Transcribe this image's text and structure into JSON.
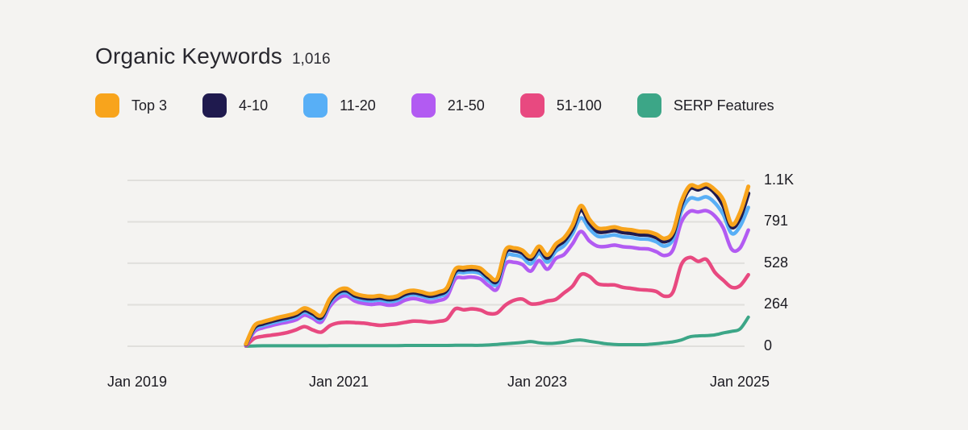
{
  "header": {
    "title": "Organic Keywords",
    "count": "1,016"
  },
  "legend": {
    "items": [
      {
        "label": "Top 3",
        "color": "#F8A41C"
      },
      {
        "label": "4-10",
        "color": "#1F1A4E"
      },
      {
        "label": "11-20",
        "color": "#58AFF6"
      },
      {
        "label": "21-50",
        "color": "#B25BF2"
      },
      {
        "label": "51-100",
        "color": "#E84980"
      },
      {
        "label": "SERP Features",
        "color": "#3CA687"
      }
    ]
  },
  "chart_data": {
    "type": "line",
    "title": "Organic Keywords",
    "total_keywords": "1,016",
    "xlabel": "",
    "ylabel": "",
    "ylim": [
      0,
      1055
    ],
    "grid": true,
    "legend_position": "top",
    "gridline_color": "#E0DFDC",
    "x_ticks": [
      "Jan 2019",
      "Jan 2021",
      "Jan 2023",
      "Jan 2025"
    ],
    "x_tick_month_index": [
      0,
      24,
      48,
      72
    ],
    "y_ticks": [
      "1.1K",
      "791",
      "528",
      "264",
      "0"
    ],
    "y_tick_values": [
      1055,
      791,
      528,
      264,
      0
    ],
    "x": [
      "2020-02",
      "2020-03",
      "2020-04",
      "2020-05",
      "2020-06",
      "2020-07",
      "2020-08",
      "2020-09",
      "2020-10",
      "2020-11",
      "2020-12",
      "2021-01",
      "2021-02",
      "2021-03",
      "2021-04",
      "2021-05",
      "2021-06",
      "2021-07",
      "2021-08",
      "2021-09",
      "2021-10",
      "2021-11",
      "2021-12",
      "2022-01",
      "2022-02",
      "2022-03",
      "2022-04",
      "2022-05",
      "2022-06",
      "2022-07",
      "2022-08",
      "2022-09",
      "2022-10",
      "2022-11",
      "2022-12",
      "2023-01",
      "2023-02",
      "2023-03",
      "2023-04",
      "2023-05",
      "2023-06",
      "2023-07",
      "2023-08",
      "2023-09",
      "2023-10",
      "2023-11",
      "2023-12",
      "2024-01",
      "2024-02",
      "2024-03",
      "2024-04",
      "2024-05",
      "2024-06",
      "2024-07",
      "2024-08",
      "2024-09",
      "2024-10",
      "2024-11",
      "2024-12",
      "2025-01",
      "2025-02"
    ],
    "series": [
      {
        "name": "Top 3",
        "color": "#F8A41C",
        "width": 5,
        "values": [
          15,
          130,
          155,
          170,
          185,
          196,
          212,
          243,
          220,
          196,
          300,
          355,
          367,
          335,
          321,
          316,
          321,
          311,
          318,
          345,
          355,
          345,
          333,
          345,
          372,
          490,
          500,
          505,
          495,
          450,
          430,
          612,
          625,
          610,
          570,
          635,
          580,
          650,
          690,
          770,
          893,
          808,
          752,
          750,
          758,
          745,
          740,
          730,
          728,
          712,
          685,
          730,
          920,
          1020,
          1012,
          1030,
          995,
          930,
          775,
          850,
          1016
        ]
      },
      {
        "name": "4-10",
        "color": "#1F1A4E",
        "width": 5,
        "values": [
          12,
          119,
          143,
          158,
          172,
          183,
          199,
          229,
          207,
          183,
          287,
          342,
          354,
          322,
          308,
          303,
          308,
          298,
          305,
          332,
          342,
          332,
          320,
          331,
          358,
          476,
          486,
          491,
          481,
          436,
          416,
          596,
          609,
          594,
          554,
          617,
          562,
          632,
          671,
          748,
          868,
          785,
          730,
          729,
          737,
          724,
          719,
          710,
          708,
          692,
          666,
          711,
          900,
          1003,
          996,
          1013,
          975,
          893,
          758,
          815,
          972
        ]
      },
      {
        "name": "11-20",
        "color": "#58AFF6",
        "width": 4.5,
        "values": [
          9,
          107,
          131,
          146,
          160,
          171,
          186,
          216,
          194,
          171,
          272,
          328,
          340,
          308,
          294,
          289,
          294,
          284,
          291,
          318,
          328,
          318,
          306,
          316,
          342,
          458,
          468,
          473,
          462,
          416,
          396,
          568,
          580,
          566,
          524,
          590,
          535,
          604,
          640,
          716,
          816,
          748,
          700,
          700,
          708,
          696,
          692,
          683,
          681,
          664,
          637,
          680,
          858,
          940,
          935,
          950,
          912,
          838,
          718,
          762,
          883
        ]
      },
      {
        "name": "21-50",
        "color": "#B25BF2",
        "width": 4.5,
        "values": [
          5,
          93,
          117,
          131,
          144,
          154,
          169,
          198,
          177,
          154,
          251,
          306,
          320,
          288,
          273,
          266,
          271,
          261,
          267,
          293,
          303,
          293,
          281,
          291,
          315,
          428,
          436,
          440,
          428,
          384,
          364,
          522,
          534,
          520,
          478,
          545,
          490,
          558,
          584,
          652,
          730,
          670,
          636,
          635,
          643,
          633,
          629,
          621,
          619,
          601,
          577,
          614,
          790,
          858,
          854,
          862,
          828,
          752,
          617,
          625,
          739
        ]
      },
      {
        "name": "51-100",
        "color": "#E84980",
        "width": 4.5,
        "values": [
          2,
          50,
          63,
          70,
          78,
          88,
          105,
          125,
          103,
          90,
          130,
          148,
          152,
          150,
          147,
          140,
          133,
          138,
          143,
          152,
          160,
          158,
          152,
          158,
          172,
          238,
          232,
          238,
          230,
          208,
          212,
          262,
          292,
          300,
          270,
          272,
          288,
          298,
          340,
          382,
          456,
          445,
          398,
          390,
          390,
          375,
          368,
          360,
          357,
          348,
          318,
          345,
          520,
          565,
          540,
          552,
          470,
          420,
          375,
          385,
          455
        ]
      },
      {
        "name": "SERP Features",
        "color": "#3CA687",
        "width": 4,
        "values": [
          0,
          2,
          3,
          3,
          3,
          3,
          3,
          3,
          3,
          3,
          4,
          4,
          4,
          4,
          4,
          4,
          4,
          4,
          4,
          5,
          5,
          5,
          5,
          5,
          5,
          6,
          6,
          6,
          6,
          8,
          12,
          16,
          20,
          24,
          30,
          22,
          18,
          20,
          26,
          36,
          40,
          32,
          24,
          16,
          12,
          10,
          10,
          10,
          12,
          16,
          22,
          28,
          40,
          60,
          66,
          68,
          72,
          85,
          95,
          110,
          185
        ]
      }
    ]
  }
}
